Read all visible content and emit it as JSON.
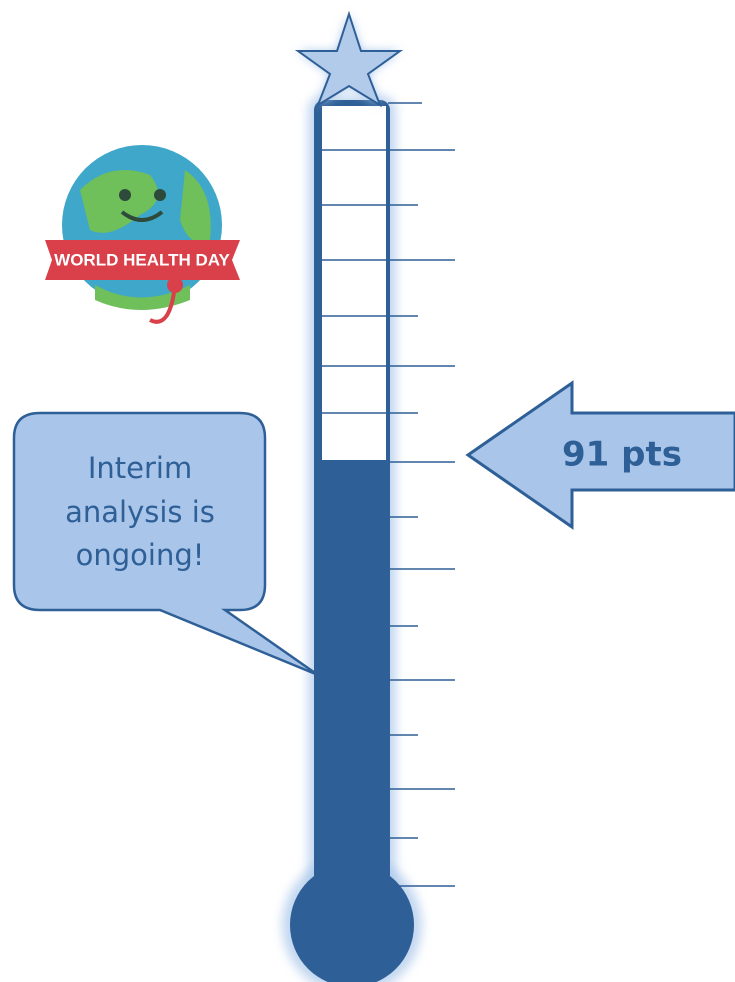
{
  "callout": {
    "lines": [
      "Interim",
      "analysis is",
      "ongoing!"
    ]
  },
  "badge": {
    "text": "WORLD HEALTH DAY"
  },
  "indicator": {
    "label": "91 pts"
  }
}
